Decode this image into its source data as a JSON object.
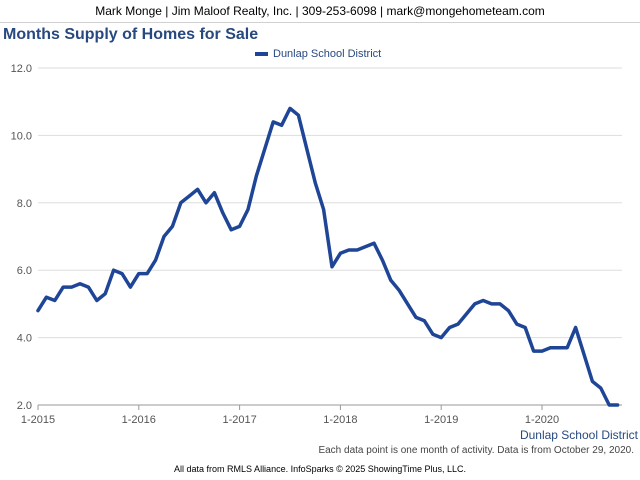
{
  "header": {
    "text": "Mark Monge | Jim Maloof Realty, Inc. | 309-253-6098 | mark@mongehometeam.com"
  },
  "footnote": "Each data point is one month of activity. Data is from October 29, 2020.",
  "source": "All data from RMLS Alliance. InfoSparks © 2025 ShowingTime Plus, LLC.",
  "colors": {
    "series": "#1f4597",
    "title": "#27497f",
    "grid": "#dddddd"
  },
  "chart_data": {
    "type": "line",
    "title": "Months Supply of Homes for Sale",
    "xlabel": "",
    "ylabel": "",
    "ylim": [
      2.0,
      12.0
    ],
    "yticks": [
      "2.0",
      "4.0",
      "6.0",
      "8.0",
      "10.0",
      "12.0"
    ],
    "xticks": [
      "1-2015",
      "1-2016",
      "1-2017",
      "1-2018",
      "1-2019",
      "1-2020"
    ],
    "legend_position": "top-center",
    "grid": true,
    "axis_series_label": "Dunlap School District",
    "x": [
      "2015-01",
      "2015-02",
      "2015-03",
      "2015-04",
      "2015-05",
      "2015-06",
      "2015-07",
      "2015-08",
      "2015-09",
      "2015-10",
      "2015-11",
      "2015-12",
      "2016-01",
      "2016-02",
      "2016-03",
      "2016-04",
      "2016-05",
      "2016-06",
      "2016-07",
      "2016-08",
      "2016-09",
      "2016-10",
      "2016-11",
      "2016-12",
      "2017-01",
      "2017-02",
      "2017-03",
      "2017-04",
      "2017-05",
      "2017-06",
      "2017-07",
      "2017-08",
      "2017-09",
      "2017-10",
      "2017-11",
      "2017-12",
      "2018-01",
      "2018-02",
      "2018-03",
      "2018-04",
      "2018-05",
      "2018-06",
      "2018-07",
      "2018-08",
      "2018-09",
      "2018-10",
      "2018-11",
      "2018-12",
      "2019-01",
      "2019-02",
      "2019-03",
      "2019-04",
      "2019-05",
      "2019-06",
      "2019-07",
      "2019-08",
      "2019-09",
      "2019-10",
      "2019-11",
      "2019-12",
      "2020-01",
      "2020-02",
      "2020-03",
      "2020-04",
      "2020-05",
      "2020-06",
      "2020-07",
      "2020-08",
      "2020-09",
      "2020-10"
    ],
    "series": [
      {
        "name": "Dunlap School District",
        "values": [
          4.8,
          5.2,
          5.1,
          5.5,
          5.5,
          5.6,
          5.5,
          5.1,
          5.3,
          6.0,
          5.9,
          5.5,
          5.9,
          5.9,
          6.3,
          7.0,
          7.3,
          8.0,
          8.2,
          8.4,
          8.0,
          8.3,
          7.7,
          7.2,
          7.3,
          7.8,
          8.8,
          9.6,
          10.4,
          10.3,
          10.8,
          10.6,
          9.6,
          8.6,
          7.8,
          6.1,
          6.5,
          6.6,
          6.6,
          6.7,
          6.8,
          6.3,
          5.7,
          5.4,
          5.0,
          4.6,
          4.5,
          4.1,
          4.0,
          4.3,
          4.4,
          4.7,
          5.0,
          5.1,
          5.0,
          5.0,
          4.8,
          4.4,
          4.3,
          3.6,
          3.6,
          3.7,
          3.7,
          3.7,
          4.3,
          3.5,
          2.7,
          2.5,
          2.0,
          2.0
        ]
      }
    ]
  }
}
